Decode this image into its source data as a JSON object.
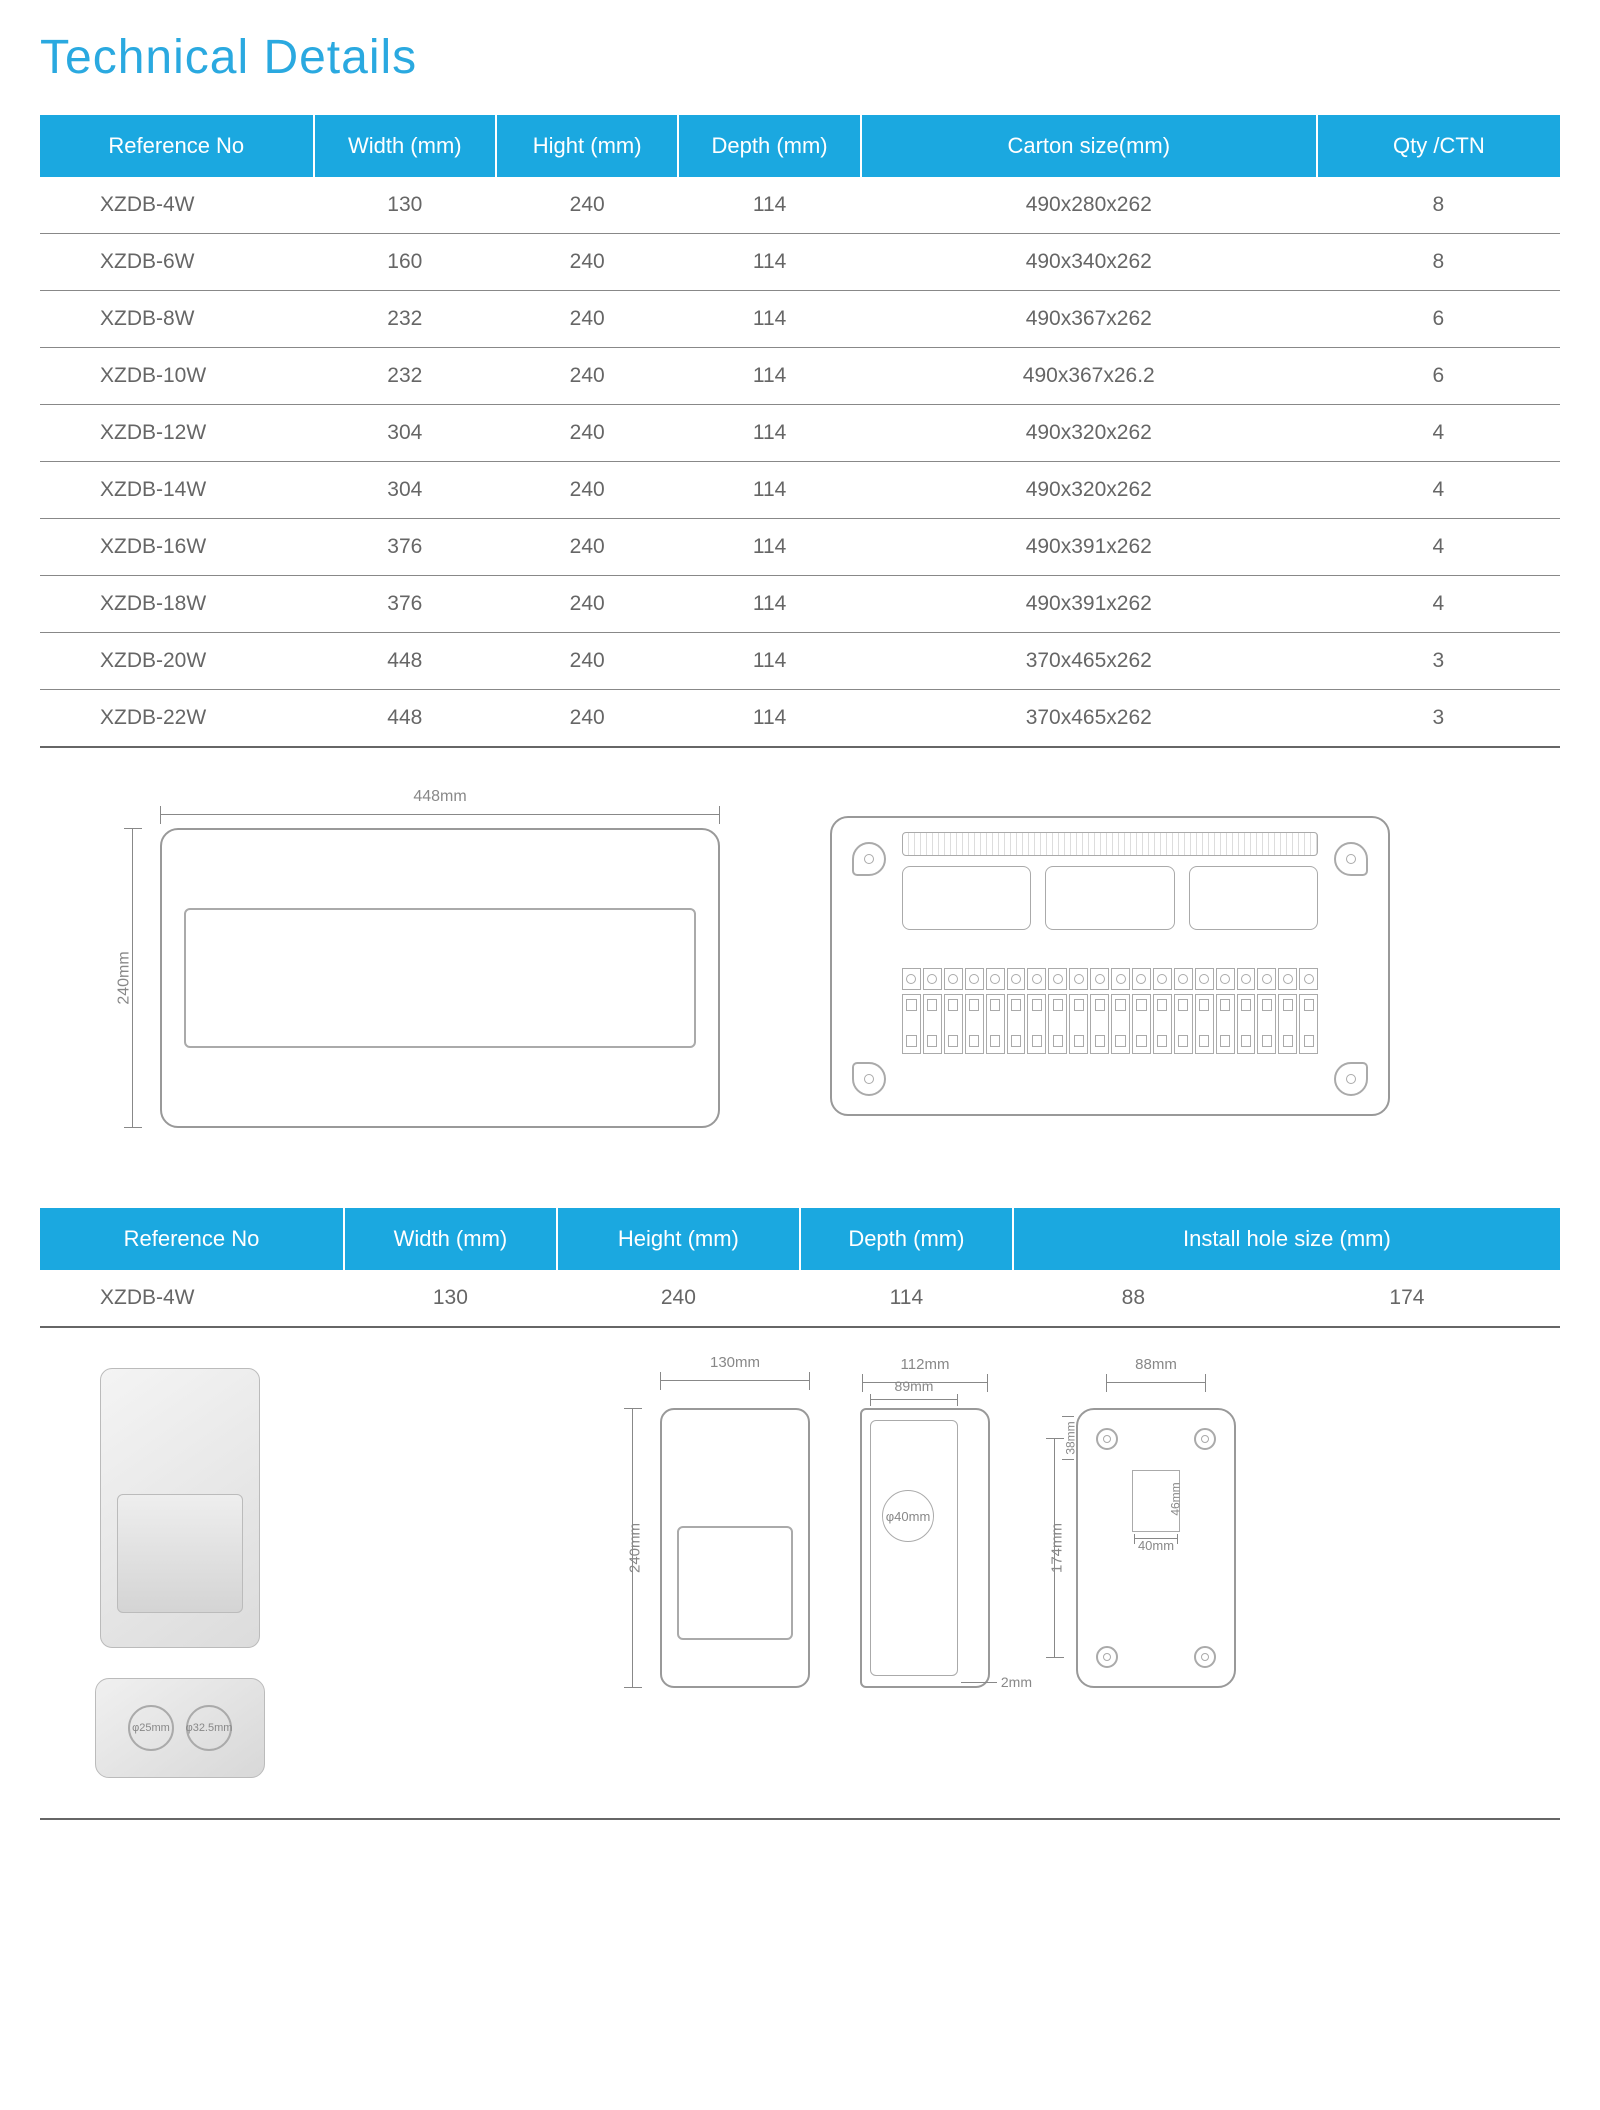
{
  "title": "Technical Details",
  "colors": {
    "header_bg": "#1ba8e0",
    "header_text": "#ffffff",
    "title_color": "#2aa9e0",
    "row_text": "#666666",
    "border": "#888888"
  },
  "table1": {
    "columns": [
      "Reference  No",
      "Width (mm)",
      "Hight (mm)",
      "Depth (mm)",
      "Carton size(mm)",
      "Qty /CTN"
    ],
    "col_widths_pct": [
      18,
      12,
      12,
      12,
      30,
      16
    ],
    "rows": [
      [
        "XZDB-4W",
        "130",
        "240",
        "114",
        "490x280x262",
        "8"
      ],
      [
        "XZDB-6W",
        "160",
        "240",
        "114",
        "490x340x262",
        "8"
      ],
      [
        "XZDB-8W",
        "232",
        "240",
        "114",
        "490x367x262",
        "6"
      ],
      [
        "XZDB-10W",
        "232",
        "240",
        "114",
        "490x367x26.2",
        "6"
      ],
      [
        "XZDB-12W",
        "304",
        "240",
        "114",
        "490x320x262",
        "4"
      ],
      [
        "XZDB-14W",
        "304",
        "240",
        "114",
        "490x320x262",
        "4"
      ],
      [
        "XZDB-16W",
        "376",
        "240",
        "114",
        "490x391x262",
        "4"
      ],
      [
        "XZDB-18W",
        "376",
        "240",
        "114",
        "490x391x262",
        "4"
      ],
      [
        "XZDB-20W",
        "448",
        "240",
        "114",
        "370x465x262",
        "3"
      ],
      [
        "XZDB-22W",
        "448",
        "240",
        "114",
        "370x465x262",
        "3"
      ]
    ]
  },
  "diagram1": {
    "width_label": "448mm",
    "height_label": "240mm",
    "breaker_count": 20
  },
  "table2": {
    "columns": [
      "Reference  No",
      "Width (mm)",
      "Height (mm)",
      "Depth (mm)",
      "Install hole size (mm)"
    ],
    "col_widths_pct": [
      20,
      14,
      16,
      14,
      36
    ],
    "rows": [
      [
        "XZDB-4W",
        "130",
        "240",
        "114",
        "88",
        "174"
      ]
    ]
  },
  "diagram2": {
    "knockout_labels": [
      "φ25mm",
      "φ32.5mm"
    ],
    "front": {
      "width": "130mm",
      "height": "240mm"
    },
    "side": {
      "width": "112mm",
      "inner_width": "89mm",
      "hole": "φ40mm",
      "edge": "2mm"
    },
    "back": {
      "hole_w": "88mm",
      "hole_h": "174mm",
      "top_offset": "38mm",
      "ko_w": "40mm",
      "ko_h": "46mm"
    }
  }
}
